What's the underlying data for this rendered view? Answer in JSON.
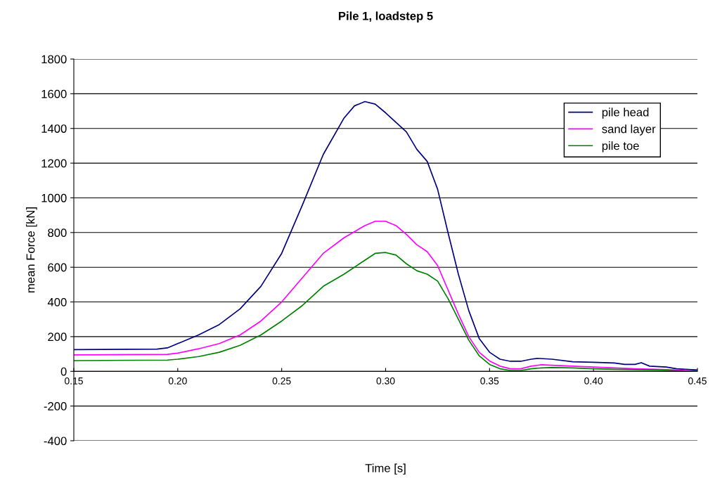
{
  "chart_data": {
    "type": "line",
    "title": "Pile 1, loadstep 5",
    "xlabel": "Time [s]",
    "ylabel": "mean Force [kN]",
    "xlim": [
      0.15,
      0.45
    ],
    "xticks": [
      {
        "value": 0.15,
        "label": "0.15"
      },
      {
        "value": 0.2,
        "label": "0.20"
      },
      {
        "value": 0.25,
        "label": "0.25"
      },
      {
        "value": 0.3,
        "label": "0.30"
      },
      {
        "value": 0.35,
        "label": "0.35"
      },
      {
        "value": 0.4,
        "label": "0.40"
      },
      {
        "value": 0.45,
        "label": "0.45"
      }
    ],
    "ylim": [
      -400,
      1800
    ],
    "yticks": [
      -400,
      -200,
      0,
      200,
      400,
      600,
      800,
      1000,
      1200,
      1400,
      1600,
      1800
    ],
    "grid": "y",
    "legend": "top right",
    "marker": "none",
    "line_style": "solid",
    "series": [
      {
        "name": "pile head",
        "color": "#000080",
        "x": [
          0.15,
          0.19,
          0.195,
          0.2,
          0.21,
          0.22,
          0.23,
          0.24,
          0.25,
          0.26,
          0.27,
          0.28,
          0.285,
          0.29,
          0.295,
          0.3,
          0.31,
          0.315,
          0.32,
          0.325,
          0.33,
          0.335,
          0.34,
          0.345,
          0.35,
          0.355,
          0.36,
          0.365,
          0.37,
          0.373,
          0.38,
          0.39,
          0.4,
          0.41,
          0.415,
          0.42,
          0.423,
          0.427,
          0.435,
          0.44,
          0.45
        ],
        "values": [
          125,
          128,
          135,
          160,
          210,
          270,
          360,
          490,
          680,
          960,
          1250,
          1460,
          1530,
          1555,
          1540,
          1490,
          1380,
          1280,
          1210,
          1050,
          800,
          560,
          350,
          190,
          110,
          70,
          58,
          58,
          70,
          75,
          70,
          55,
          52,
          48,
          40,
          40,
          50,
          30,
          25,
          15,
          8
        ]
      },
      {
        "name": "sand layer",
        "color": "#ff00ff",
        "x": [
          0.15,
          0.195,
          0.2,
          0.21,
          0.22,
          0.23,
          0.24,
          0.25,
          0.26,
          0.27,
          0.28,
          0.29,
          0.295,
          0.3,
          0.305,
          0.31,
          0.315,
          0.32,
          0.325,
          0.33,
          0.335,
          0.34,
          0.345,
          0.35,
          0.355,
          0.36,
          0.365,
          0.37,
          0.375,
          0.38,
          0.39,
          0.4,
          0.41,
          0.42,
          0.43,
          0.44,
          0.45
        ],
        "values": [
          95,
          98,
          105,
          130,
          160,
          210,
          290,
          400,
          540,
          680,
          770,
          840,
          865,
          865,
          840,
          790,
          730,
          690,
          610,
          470,
          330,
          200,
          110,
          60,
          30,
          15,
          15,
          30,
          38,
          35,
          30,
          25,
          20,
          15,
          12,
          8,
          0
        ]
      },
      {
        "name": "pile toe",
        "color": "#008000",
        "x": [
          0.15,
          0.195,
          0.2,
          0.21,
          0.22,
          0.23,
          0.24,
          0.25,
          0.26,
          0.27,
          0.28,
          0.29,
          0.295,
          0.3,
          0.305,
          0.31,
          0.315,
          0.32,
          0.325,
          0.33,
          0.335,
          0.34,
          0.345,
          0.35,
          0.355,
          0.36,
          0.365,
          0.37,
          0.375,
          0.38,
          0.39,
          0.4,
          0.41,
          0.42,
          0.43,
          0.44,
          0.45
        ],
        "values": [
          62,
          65,
          70,
          85,
          110,
          150,
          210,
          290,
          380,
          490,
          560,
          640,
          680,
          685,
          670,
          620,
          580,
          560,
          520,
          420,
          300,
          180,
          90,
          40,
          15,
          5,
          5,
          15,
          20,
          22,
          20,
          15,
          12,
          10,
          8,
          3,
          0
        ]
      }
    ]
  }
}
